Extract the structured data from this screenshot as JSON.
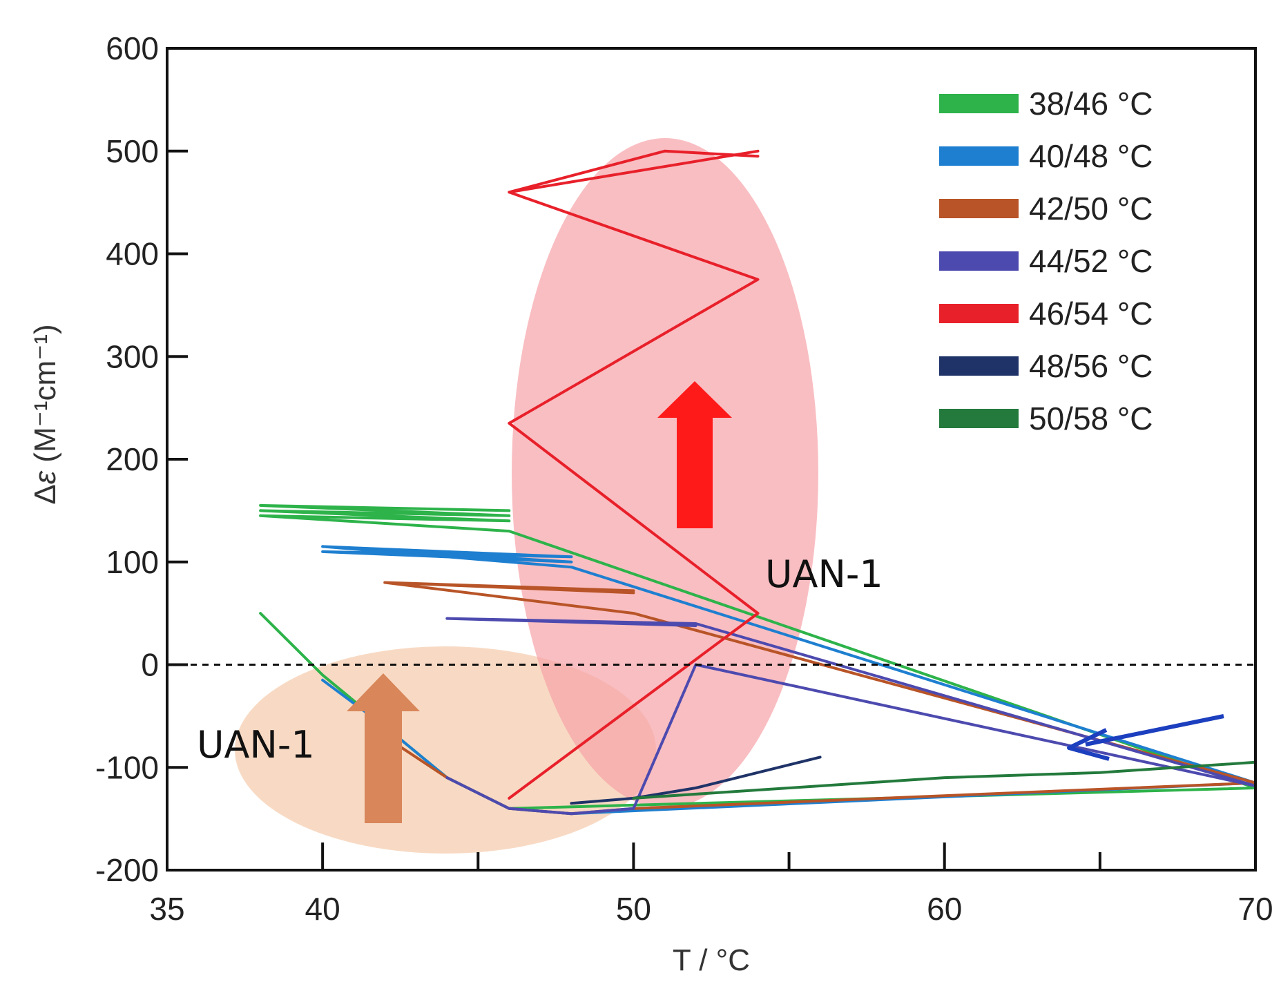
{
  "chart_data": {
    "type": "line",
    "xlabel": "T / °C",
    "ylabel_prefix": "Δ",
    "ylabel_symbol": "ε",
    "ylabel_units": " (M⁻¹cm⁻¹)",
    "xlim": [
      35,
      70
    ],
    "ylim": [
      -200,
      600
    ],
    "x_ticks": [
      35,
      40,
      50,
      60,
      70
    ],
    "x_tick_labels": [
      "35",
      "40",
      "50",
      "60",
      "70"
    ],
    "x_minor_ticks": [
      45,
      55,
      65
    ],
    "y_ticks": [
      -200,
      -100,
      0,
      100,
      200,
      300,
      400,
      500,
      600
    ],
    "y_tick_labels": [
      "-200",
      "-100",
      "0",
      "100",
      "200",
      "300",
      "400",
      "500",
      "600"
    ],
    "reference_line_y": 0,
    "legend_position": "top-right",
    "series": [
      {
        "name": "38/46 °C",
        "color": "#2db34a",
        "x": [
          38,
          40,
          42,
          44,
          46,
          70,
          46,
          38,
          46,
          38,
          46,
          38,
          46
        ],
        "y": [
          50,
          -10,
          -60,
          -110,
          -140,
          -120,
          130,
          145,
          140,
          150,
          145,
          155,
          150
        ]
      },
      {
        "name": "40/48 °C",
        "color": "#1e7fd0",
        "x": [
          40,
          42,
          44,
          46,
          48,
          70,
          48,
          40,
          48,
          40,
          48,
          40,
          48
        ],
        "y": [
          -15,
          -60,
          -110,
          -140,
          -145,
          -115,
          95,
          115,
          105,
          110,
          100,
          115,
          105
        ]
      },
      {
        "name": "42/50 °C",
        "color": "#b85427",
        "x": [
          42,
          44,
          46,
          48,
          50,
          70,
          50,
          42,
          50,
          42,
          50,
          42,
          50
        ],
        "y": [
          -70,
          -110,
          -140,
          -145,
          -140,
          -115,
          50,
          80,
          70,
          80,
          70,
          80,
          72
        ]
      },
      {
        "name": "44/52 °C",
        "color": "#4d4aaf",
        "x": [
          44,
          46,
          48,
          50,
          52,
          70,
          52,
          44,
          52,
          44,
          52,
          44,
          52
        ],
        "y": [
          -110,
          -140,
          -145,
          -140,
          0,
          -118,
          40,
          45,
          40,
          45,
          38,
          45,
          40
        ]
      },
      {
        "name": "46/54 °C",
        "color": "#e8202a",
        "x": [
          46,
          54,
          46,
          54,
          46,
          54,
          46,
          51,
          54
        ],
        "y": [
          -130,
          50,
          235,
          375,
          460,
          500,
          460,
          500,
          495
        ]
      },
      {
        "name": "48/56 °C",
        "color": "#1f3368",
        "x": [
          48,
          50,
          52,
          54,
          56
        ],
        "y": [
          -135,
          -130,
          -120,
          -105,
          -90
        ]
      },
      {
        "name": "50/58 °C",
        "color": "#237a3c",
        "x": [
          50,
          55,
          60,
          65,
          70
        ],
        "y": [
          -130,
          -120,
          -110,
          -105,
          -95
        ]
      }
    ],
    "annotations": [
      {
        "text": "UAN-1",
        "region": "red ellipse, 46/54 °C trace"
      },
      {
        "text": "UAN-1",
        "region": "orange ellipse, low-temperature traces"
      }
    ]
  }
}
